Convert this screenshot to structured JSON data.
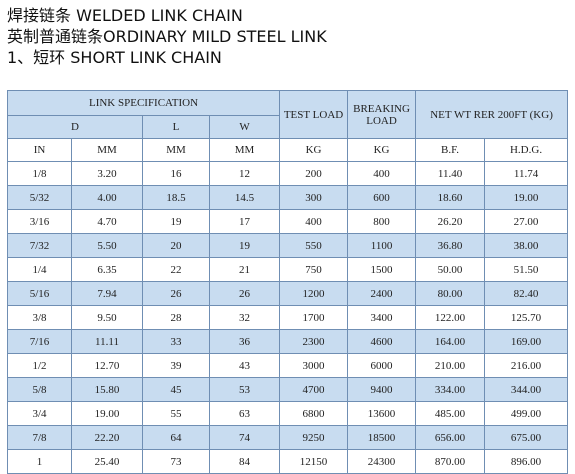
{
  "titles": {
    "line1": "焊接链条 WELDED LINK CHAIN",
    "line2": "英制普通链条ORDINARY MILD STEEL LINK",
    "line3": "1、短环 SHORT LINK CHAIN"
  },
  "headers": {
    "link_spec": "LINK SPECIFICATION",
    "test_load": "TEST LOAD",
    "breaking_load": "BREAKING LOAD",
    "net_wt": "NET WT RER 200FT (KG)",
    "d": "D",
    "l": "L",
    "w": "W",
    "units": [
      "IN",
      "MM",
      "MM",
      "MM",
      "KG",
      "KG",
      "B.F.",
      "H.D.G."
    ]
  },
  "rows": [
    [
      "1/8",
      "3.20",
      "16",
      "12",
      "200",
      "400",
      "11.40",
      "11.74"
    ],
    [
      "5/32",
      "4.00",
      "18.5",
      "14.5",
      "300",
      "600",
      "18.60",
      "19.00"
    ],
    [
      "3/16",
      "4.70",
      "19",
      "17",
      "400",
      "800",
      "26.20",
      "27.00"
    ],
    [
      "7/32",
      "5.50",
      "20",
      "19",
      "550",
      "1100",
      "36.80",
      "38.00"
    ],
    [
      "1/4",
      "6.35",
      "22",
      "21",
      "750",
      "1500",
      "50.00",
      "51.50"
    ],
    [
      "5/16",
      "7.94",
      "26",
      "26",
      "1200",
      "2400",
      "80.00",
      "82.40"
    ],
    [
      "3/8",
      "9.50",
      "28",
      "32",
      "1700",
      "3400",
      "122.00",
      "125.70"
    ],
    [
      "7/16",
      "11.11",
      "33",
      "36",
      "2300",
      "4600",
      "164.00",
      "169.00"
    ],
    [
      "1/2",
      "12.70",
      "39",
      "43",
      "3000",
      "6000",
      "210.00",
      "216.00"
    ],
    [
      "5/8",
      "15.80",
      "45",
      "53",
      "4700",
      "9400",
      "334.00",
      "344.00"
    ],
    [
      "3/4",
      "19.00",
      "55",
      "63",
      "6800",
      "13600",
      "485.00",
      "499.00"
    ],
    [
      "7/8",
      "22.20",
      "64",
      "74",
      "9250",
      "18500",
      "656.00",
      "675.00"
    ],
    [
      "1",
      "25.40",
      "73",
      "84",
      "12150",
      "24300",
      "870.00",
      "896.00"
    ]
  ]
}
